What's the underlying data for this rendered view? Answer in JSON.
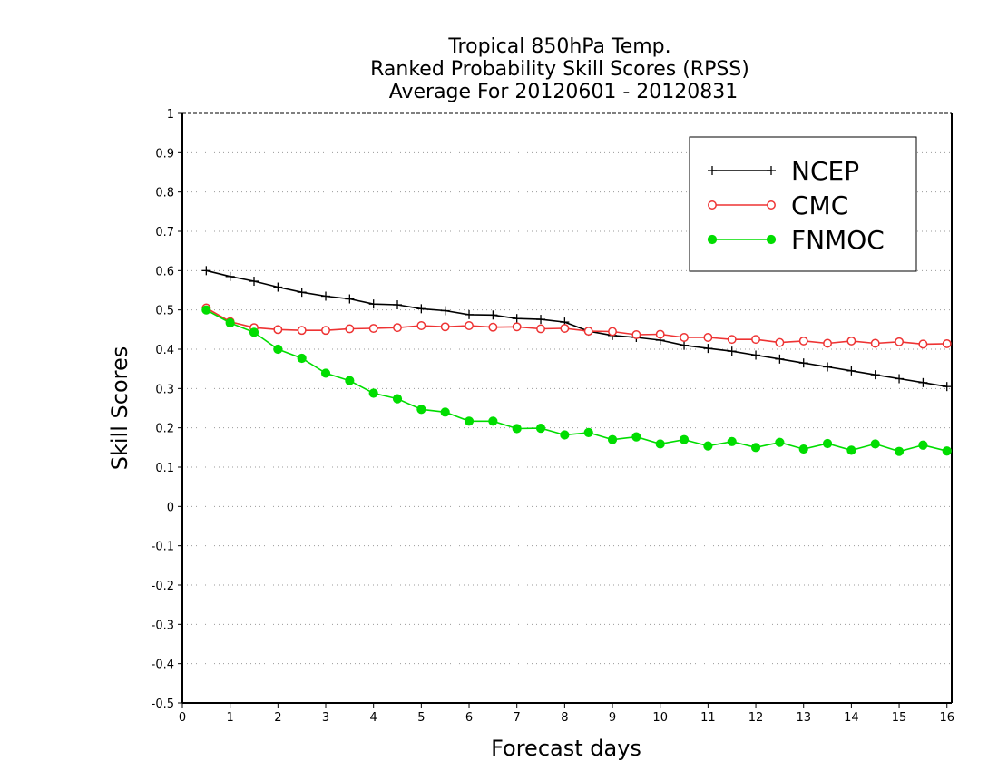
{
  "chart_data": {
    "type": "line",
    "title_lines": [
      "Tropical 850hPa Temp.",
      "Ranked Probability Skill Scores (RPSS)",
      "Average For 20120601 - 20120831"
    ],
    "xlabel": "Forecast days",
    "ylabel": "Skill Scores",
    "xlim": [
      0,
      16.1
    ],
    "ylim": [
      -0.5,
      1
    ],
    "x_ticks": [
      "0",
      "1",
      "2",
      "3",
      "4",
      "5",
      "6",
      "7",
      "8",
      "9",
      "10",
      "11",
      "12",
      "13",
      "14",
      "15",
      "16"
    ],
    "y_ticks": [
      "1",
      "0.9",
      "0.8",
      "0.7",
      "0.6",
      "0.5",
      "0.4",
      "0.3",
      "0.2",
      "0.1",
      "0",
      "-0.1",
      "-0.2",
      "-0.3",
      "-0.4",
      "-0.5"
    ],
    "grid": "horizontal dotted",
    "legend_position": "top-right",
    "x": [
      0.5,
      1.0,
      1.5,
      2.0,
      2.5,
      3.0,
      3.5,
      4.0,
      4.5,
      5.0,
      5.5,
      6.0,
      6.5,
      7.0,
      7.5,
      8.0,
      8.5,
      9.0,
      9.5,
      10.0,
      10.5,
      11.0,
      11.5,
      12.0,
      12.5,
      13.0,
      13.5,
      14.0,
      14.5,
      15.0,
      15.5,
      16.0
    ],
    "series": [
      {
        "name": "NCEP",
        "color": "#000000",
        "marker": "plus",
        "values": [
          0.6,
          0.585,
          0.573,
          0.558,
          0.545,
          0.535,
          0.528,
          0.515,
          0.513,
          0.503,
          0.498,
          0.488,
          0.487,
          0.478,
          0.476,
          0.469,
          0.446,
          0.435,
          0.43,
          0.423,
          0.41,
          0.402,
          0.395,
          0.385,
          0.375,
          0.365,
          0.355,
          0.345,
          0.335,
          0.325,
          0.315,
          0.305
        ]
      },
      {
        "name": "CMC",
        "color": "#ee3333",
        "marker": "open-circle",
        "values": [
          0.505,
          0.47,
          0.455,
          0.45,
          0.448,
          0.448,
          0.452,
          0.453,
          0.455,
          0.46,
          0.457,
          0.46,
          0.456,
          0.457,
          0.452,
          0.453,
          0.446,
          0.445,
          0.437,
          0.438,
          0.43,
          0.43,
          0.425,
          0.425,
          0.417,
          0.421,
          0.415,
          0.421,
          0.415,
          0.419,
          0.413,
          0.414
        ]
      },
      {
        "name": "FNMOC",
        "color": "#00dd00",
        "marker": "filled-circle",
        "values": [
          0.5,
          0.467,
          0.443,
          0.4,
          0.377,
          0.339,
          0.32,
          0.288,
          0.274,
          0.247,
          0.24,
          0.217,
          0.217,
          0.198,
          0.199,
          0.182,
          0.188,
          0.17,
          0.177,
          0.159,
          0.17,
          0.154,
          0.165,
          0.15,
          0.163,
          0.146,
          0.16,
          0.143,
          0.159,
          0.14,
          0.156,
          0.141
        ]
      }
    ]
  }
}
